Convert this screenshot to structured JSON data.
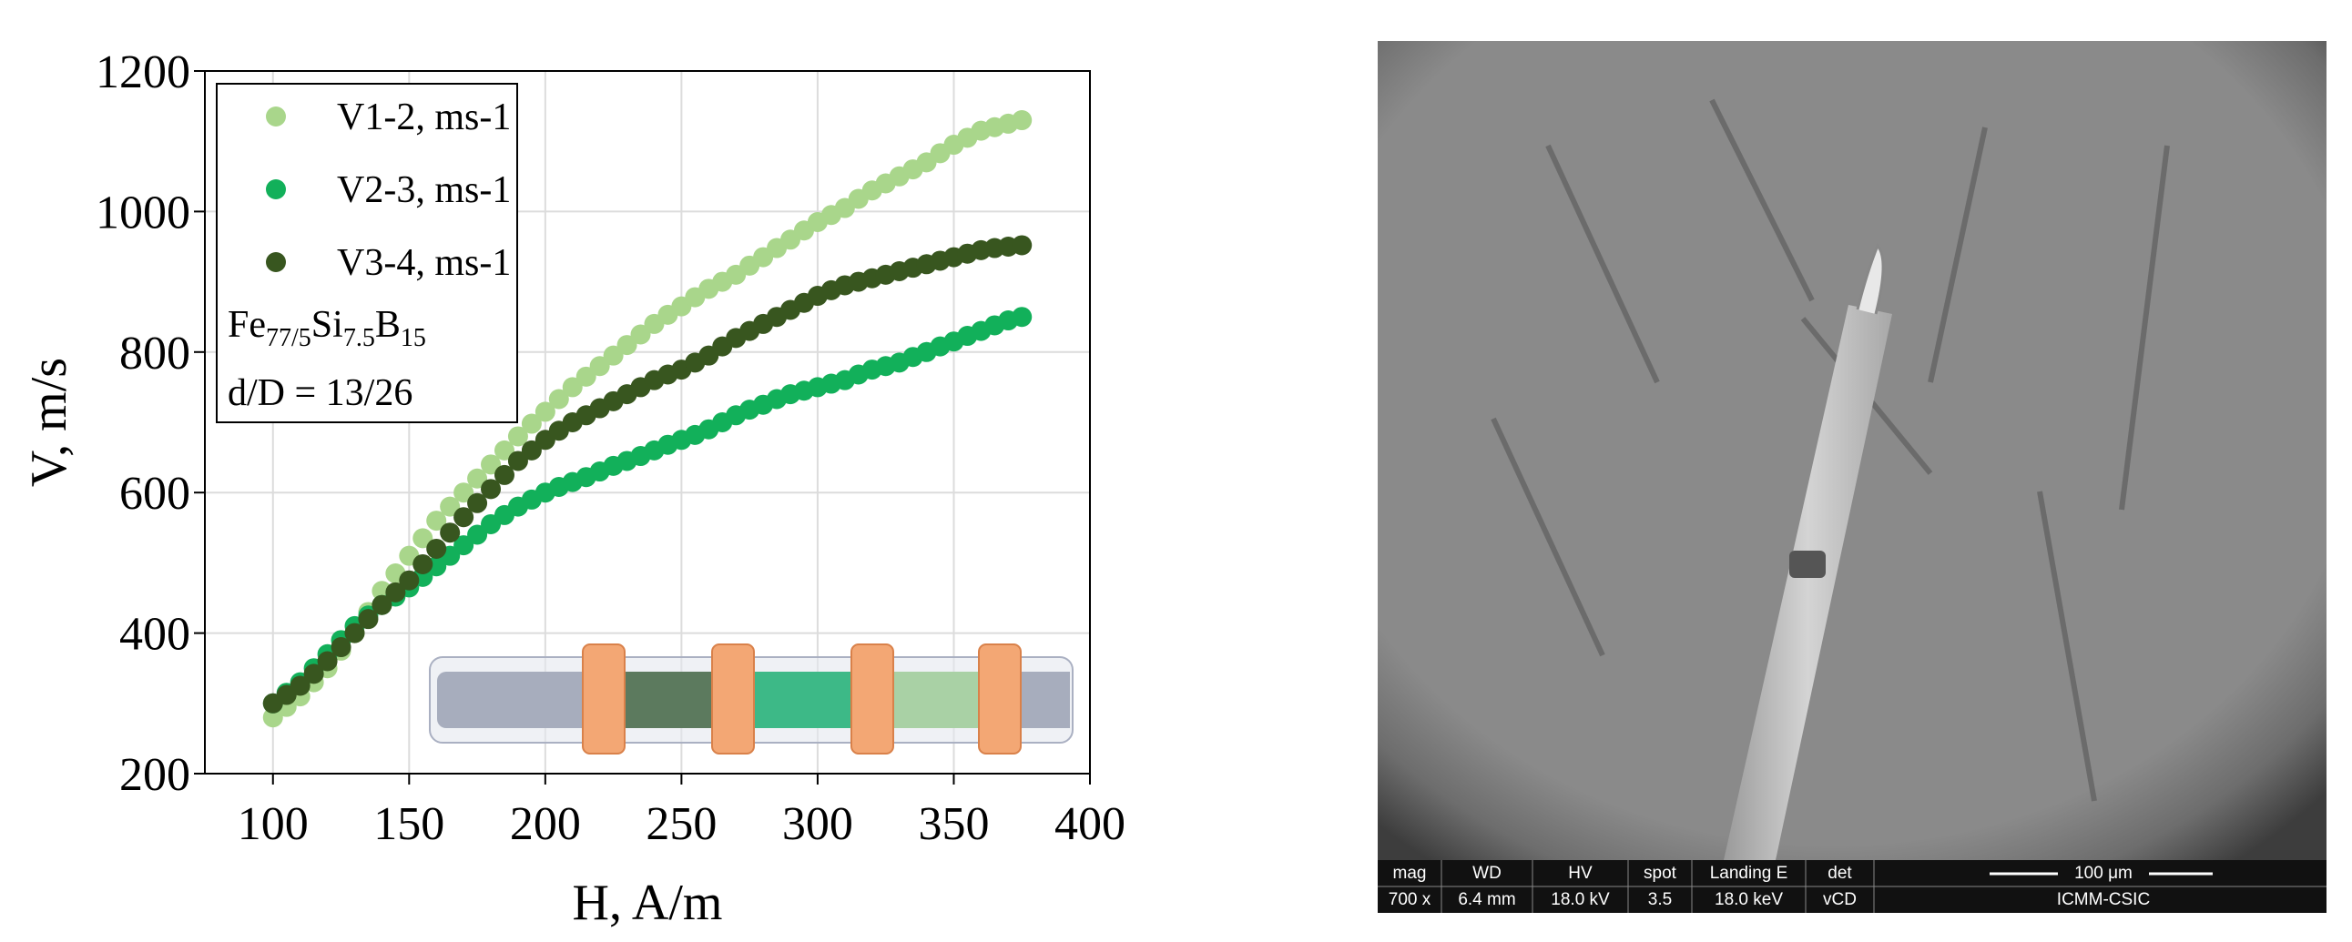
{
  "chart_data": {
    "type": "scatter",
    "x": [
      100,
      105,
      110,
      115,
      120,
      125,
      130,
      135,
      140,
      145,
      150,
      155,
      160,
      165,
      170,
      175,
      180,
      185,
      190,
      195,
      200,
      205,
      210,
      215,
      220,
      225,
      230,
      235,
      240,
      245,
      250,
      255,
      260,
      265,
      270,
      275,
      280,
      285,
      290,
      295,
      300,
      305,
      310,
      315,
      320,
      325,
      330,
      335,
      340,
      345,
      350,
      355,
      360,
      365,
      370,
      375
    ],
    "series": [
      {
        "name": "V1-2, ms-1",
        "color": "#a9d68b",
        "values": [
          280,
          295,
          310,
          330,
          350,
          375,
          400,
          430,
          460,
          485,
          510,
          535,
          560,
          580,
          600,
          620,
          640,
          660,
          680,
          698,
          715,
          733,
          750,
          765,
          780,
          795,
          810,
          825,
          840,
          853,
          865,
          878,
          890,
          900,
          910,
          923,
          935,
          948,
          960,
          973,
          985,
          995,
          1005,
          1018,
          1030,
          1040,
          1050,
          1060,
          1070,
          1083,
          1095,
          1105,
          1115,
          1120,
          1125,
          1130
        ]
      },
      {
        "name": "V2-3, ms-1",
        "color": "#12b05a",
        "values": [
          300,
          315,
          330,
          350,
          370,
          390,
          410,
          425,
          440,
          452,
          465,
          480,
          495,
          510,
          525,
          540,
          555,
          568,
          580,
          590,
          600,
          608,
          615,
          622,
          630,
          638,
          645,
          652,
          660,
          668,
          675,
          682,
          690,
          700,
          710,
          718,
          725,
          733,
          740,
          745,
          750,
          755,
          760,
          768,
          775,
          780,
          785,
          793,
          800,
          808,
          815,
          823,
          830,
          838,
          845,
          850
        ]
      },
      {
        "name": "V3-4, ms-1",
        "color": "#38561f",
        "values": [
          300,
          312,
          325,
          342,
          360,
          380,
          400,
          420,
          440,
          458,
          475,
          498,
          520,
          543,
          565,
          585,
          605,
          625,
          645,
          660,
          675,
          688,
          700,
          710,
          720,
          730,
          740,
          750,
          760,
          768,
          775,
          785,
          795,
          808,
          820,
          830,
          840,
          850,
          860,
          870,
          880,
          888,
          895,
          900,
          905,
          910,
          915,
          920,
          925,
          930,
          935,
          940,
          945,
          948,
          950,
          952
        ]
      }
    ],
    "xlabel": "H, A/m",
    "ylabel": "V, m/s",
    "xlim": [
      75,
      400
    ],
    "xticks": [
      100,
      150,
      200,
      250,
      300,
      350,
      400
    ],
    "ylim": [
      200,
      1200
    ],
    "yticks": [
      200,
      400,
      600,
      800,
      1000,
      1200
    ],
    "grid": true,
    "legend": "upper left",
    "annotations": [
      [
        {
          "text": "Fe"
        },
        {
          "text": "77/5",
          "sub": true
        },
        {
          "text": "Si"
        },
        {
          "text": "7.5",
          "sub": true
        },
        {
          "text": "B"
        },
        {
          "text": "15",
          "sub": true
        }
      ],
      [
        {
          "text": "d/D = 13/26"
        }
      ]
    ]
  },
  "micrograph": {
    "fields": [
      {
        "label": "mag",
        "value": "700 x"
      },
      {
        "label": "WD",
        "value": "6.4 mm"
      },
      {
        "label": "HV",
        "value": "18.0 kV"
      },
      {
        "label": "spot",
        "value": "3.5"
      },
      {
        "label": "Landing E",
        "value": "18.0 keV"
      },
      {
        "label": "det",
        "value": "vCD"
      }
    ],
    "scale_bar": "100 μm",
    "institution": "ICMM-CSIC"
  }
}
